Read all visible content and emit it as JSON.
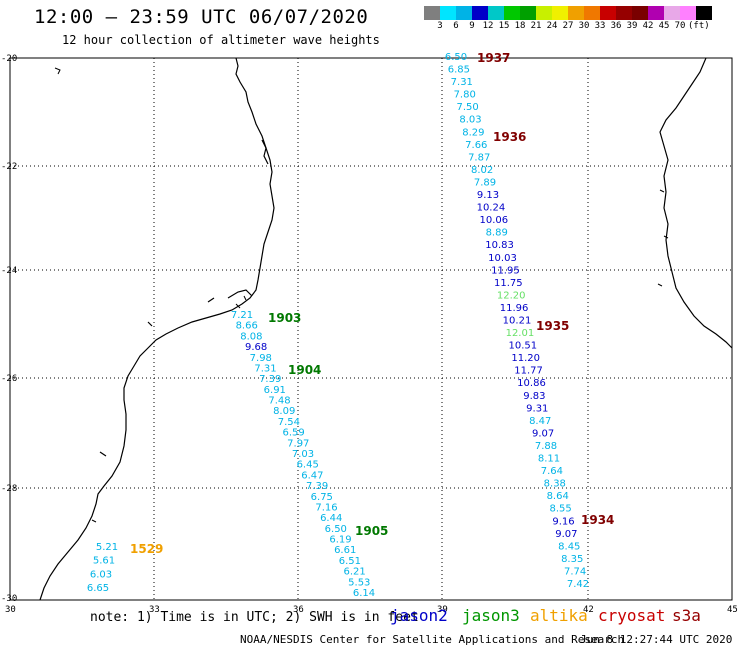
{
  "header": {
    "title": "12:00 – 23:59 UTC 06/07/2020",
    "subtitle": "12 hour collection of altimeter wave heights"
  },
  "colorbar": {
    "colors": [
      "#7f7f7f",
      "#00e5ff",
      "#00b3e6",
      "#0000c8",
      "#00c8c8",
      "#00c800",
      "#00a000",
      "#c8f000",
      "#f0f000",
      "#f0a000",
      "#f07800",
      "#c80000",
      "#960000",
      "#7a0000",
      "#b000b0",
      "#e8a8e8",
      "#ff80ff",
      "#000000"
    ],
    "labels": [
      "3",
      "6",
      "9",
      "12",
      "15",
      "18",
      "21",
      "24",
      "27",
      "30",
      "33",
      "36",
      "39",
      "42",
      "45",
      "70",
      "(ft)"
    ]
  },
  "axes": {
    "lat_labels": [
      "-20",
      "-22",
      "-24",
      "-26",
      "-28",
      "-30"
    ],
    "lon_labels": [
      "30",
      "33",
      "36",
      "39",
      "42",
      "45"
    ]
  },
  "pass_labels": [
    {
      "text": "1937",
      "color": "#800000"
    },
    {
      "text": "1936",
      "color": "#800000"
    },
    {
      "text": "1935",
      "color": "#800000"
    },
    {
      "text": "1934",
      "color": "#800000"
    },
    {
      "text": "1903",
      "color": "#007800"
    },
    {
      "text": "1904",
      "color": "#007800"
    },
    {
      "text": "1905",
      "color": "#007800"
    },
    {
      "text": "1529",
      "color": "#f0a000"
    }
  ],
  "tracks": {
    "track_1937": [
      {
        "v": "6.50",
        "c": "#00b3e6"
      },
      {
        "v": "6.85",
        "c": "#00b3e6"
      },
      {
        "v": "7.31",
        "c": "#00b3e6"
      },
      {
        "v": "7.80",
        "c": "#00b3e6"
      },
      {
        "v": "7.50",
        "c": "#00b3e6"
      },
      {
        "v": "8.03",
        "c": "#00b3e6"
      },
      {
        "v": "8.29",
        "c": "#00b3e6"
      },
      {
        "v": "7.66",
        "c": "#00b3e6"
      },
      {
        "v": "7.87",
        "c": "#00b3e6"
      },
      {
        "v": "8.02",
        "c": "#00b3e6"
      },
      {
        "v": "7.89",
        "c": "#00b3e6"
      },
      {
        "v": "9.13",
        "c": "#0000c8"
      },
      {
        "v": "10.24",
        "c": "#0000c8"
      },
      {
        "v": "10.06",
        "c": "#0000c8"
      },
      {
        "v": "8.89",
        "c": "#00b3e6"
      },
      {
        "v": "10.83",
        "c": "#0000c8"
      },
      {
        "v": "10.03",
        "c": "#0000c8"
      },
      {
        "v": "11.95",
        "c": "#0000c8"
      },
      {
        "v": "11.75",
        "c": "#0000c8"
      },
      {
        "v": "12.20",
        "c": "#66e066"
      },
      {
        "v": "11.96",
        "c": "#0000c8"
      },
      {
        "v": "10.21",
        "c": "#0000c8"
      },
      {
        "v": "12.01",
        "c": "#66e066"
      },
      {
        "v": "10.51",
        "c": "#0000c8"
      },
      {
        "v": "11.20",
        "c": "#0000c8"
      },
      {
        "v": "11.77",
        "c": "#0000c8"
      },
      {
        "v": "10.86",
        "c": "#0000c8"
      },
      {
        "v": "9.83",
        "c": "#0000c8"
      },
      {
        "v": "9.31",
        "c": "#0000c8"
      },
      {
        "v": "8.47",
        "c": "#00b3e6"
      },
      {
        "v": "9.07",
        "c": "#0000c8"
      },
      {
        "v": "7.88",
        "c": "#00b3e6"
      },
      {
        "v": "8.11",
        "c": "#00b3e6"
      },
      {
        "v": "7.64",
        "c": "#00b3e6"
      },
      {
        "v": "8.38",
        "c": "#00b3e6"
      },
      {
        "v": "8.64",
        "c": "#00b3e6"
      },
      {
        "v": "8.55",
        "c": "#00b3e6"
      },
      {
        "v": "9.16",
        "c": "#0000c8"
      },
      {
        "v": "9.07",
        "c": "#0000c8"
      },
      {
        "v": "8.45",
        "c": "#00b3e6"
      },
      {
        "v": "8.35",
        "c": "#00b3e6"
      },
      {
        "v": "7.74",
        "c": "#00b3e6"
      },
      {
        "v": "7.42",
        "c": "#00b3e6"
      }
    ],
    "track_1903": [
      {
        "v": "7.21",
        "c": "#00b3e6"
      },
      {
        "v": "8.66",
        "c": "#00b3e6"
      },
      {
        "v": "8.08",
        "c": "#00b3e6"
      },
      {
        "v": "9.68",
        "c": "#0000c8"
      },
      {
        "v": "7.98",
        "c": "#00b3e6"
      },
      {
        "v": "7.31",
        "c": "#00b3e6"
      },
      {
        "v": "7.39",
        "c": "#00b3e6"
      },
      {
        "v": "6.91",
        "c": "#00b3e6"
      },
      {
        "v": "7.48",
        "c": "#00b3e6"
      },
      {
        "v": "8.09",
        "c": "#00b3e6"
      },
      {
        "v": "7.54",
        "c": "#00b3e6"
      },
      {
        "v": "6.59",
        "c": "#00b3e6"
      },
      {
        "v": "7.97",
        "c": "#00b3e6"
      },
      {
        "v": "7.03",
        "c": "#00b3e6"
      },
      {
        "v": "6.45",
        "c": "#00b3e6"
      },
      {
        "v": "6.47",
        "c": "#00b3e6"
      },
      {
        "v": "7.39",
        "c": "#00b3e6"
      },
      {
        "v": "6.75",
        "c": "#00b3e6"
      },
      {
        "v": "7.16",
        "c": "#00b3e6"
      },
      {
        "v": "6.44",
        "c": "#00b3e6"
      },
      {
        "v": "6.50",
        "c": "#00b3e6"
      },
      {
        "v": "6.19",
        "c": "#00b3e6"
      },
      {
        "v": "6.61",
        "c": "#00b3e6"
      },
      {
        "v": "6.51",
        "c": "#00b3e6"
      },
      {
        "v": "6.21",
        "c": "#00b3e6"
      },
      {
        "v": "5.53",
        "c": "#00b3e6"
      },
      {
        "v": "6.14",
        "c": "#00b3e6"
      }
    ],
    "track_1529": [
      {
        "v": "5.21",
        "c": "#00b3e6"
      },
      {
        "v": "5.61",
        "c": "#00b3e6"
      },
      {
        "v": "6.03",
        "c": "#00b3e6"
      },
      {
        "v": "6.65",
        "c": "#00b3e6"
      }
    ]
  },
  "footer": {
    "note": "note: 1) Time is in UTC; 2) SWH is in feet",
    "legend": [
      {
        "name": "jason2",
        "color": "#0000c8"
      },
      {
        "name": "jason3",
        "color": "#009600"
      },
      {
        "name": "altika",
        "color": "#f0a000"
      },
      {
        "name": "cryosat",
        "color": "#c80000"
      },
      {
        "name": "s3a",
        "color": "#960000"
      }
    ],
    "credit": "NOAA/NESDIS Center for Satellite Applications and Research",
    "timestamp": "Jun  8 12:27:44 UTC 2020"
  }
}
